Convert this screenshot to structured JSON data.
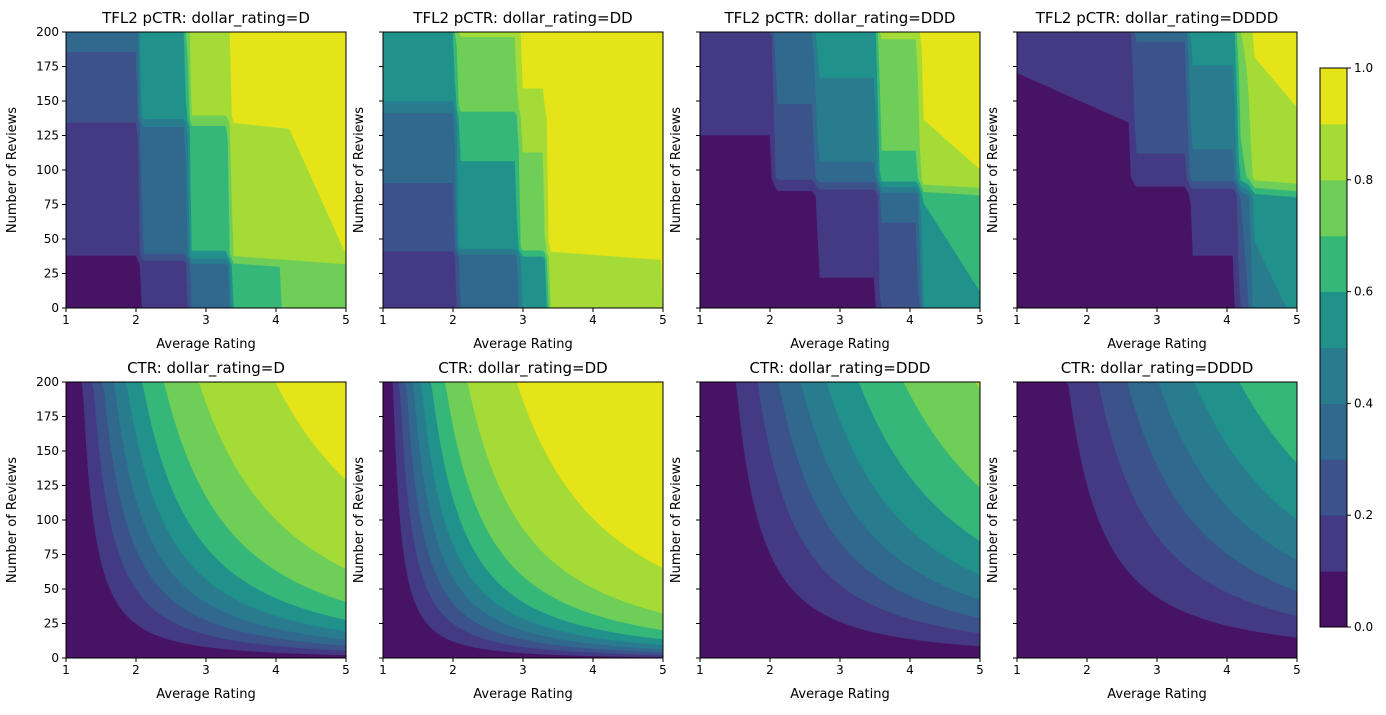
{
  "chart_data": [
    {
      "type": "contour",
      "title": "TFL2 pCTR: dollar_rating=D",
      "xlabel": "Average Rating",
      "ylabel": "Number of Reviews",
      "xlim": [
        1,
        5
      ],
      "ylim": [
        0,
        200
      ],
      "xticks": [
        1,
        2,
        3,
        4,
        5
      ],
      "yticks": [
        0,
        25,
        50,
        75,
        100,
        125,
        150,
        175,
        200
      ],
      "ytick_labels": true
    },
    {
      "type": "contour",
      "title": "TFL2 pCTR: dollar_rating=DD",
      "xlabel": "Average Rating",
      "ylabel": "Number of Reviews",
      "xlim": [
        1,
        5
      ],
      "ylim": [
        0,
        200
      ],
      "xticks": [
        1,
        2,
        3,
        4,
        5
      ],
      "yticks": [
        0,
        25,
        50,
        75,
        100,
        125,
        150,
        175,
        200
      ],
      "ytick_labels": false
    },
    {
      "type": "contour",
      "title": "TFL2 pCTR: dollar_rating=DDD",
      "xlabel": "Average Rating",
      "ylabel": "Number of Reviews",
      "xlim": [
        1,
        5
      ],
      "ylim": [
        0,
        200
      ],
      "xticks": [
        1,
        2,
        3,
        4,
        5
      ],
      "yticks": [
        0,
        25,
        50,
        75,
        100,
        125,
        150,
        175,
        200
      ],
      "ytick_labels": false
    },
    {
      "type": "contour",
      "title": "TFL2 pCTR: dollar_rating=DDDD",
      "xlabel": "Average Rating",
      "ylabel": "Number of Reviews",
      "xlim": [
        1,
        5
      ],
      "ylim": [
        0,
        200
      ],
      "xticks": [
        1,
        2,
        3,
        4,
        5
      ],
      "yticks": [
        0,
        25,
        50,
        75,
        100,
        125,
        150,
        175,
        200
      ],
      "ytick_labels": false
    },
    {
      "type": "contour",
      "title": "CTR: dollar_rating=D",
      "xlabel": "Average Rating",
      "ylabel": "Number of Reviews",
      "xlim": [
        1,
        5
      ],
      "ylim": [
        0,
        200
      ],
      "xticks": [
        1,
        2,
        3,
        4,
        5
      ],
      "yticks": [
        0,
        25,
        50,
        75,
        100,
        125,
        150,
        175,
        200
      ],
      "ytick_labels": true
    },
    {
      "type": "contour",
      "title": "CTR: dollar_rating=DD",
      "xlabel": "Average Rating",
      "ylabel": "Number of Reviews",
      "xlim": [
        1,
        5
      ],
      "ylim": [
        0,
        200
      ],
      "xticks": [
        1,
        2,
        3,
        4,
        5
      ],
      "yticks": [
        0,
        25,
        50,
        75,
        100,
        125,
        150,
        175,
        200
      ],
      "ytick_labels": false
    },
    {
      "type": "contour",
      "title": "CTR: dollar_rating=DDD",
      "xlabel": "Average Rating",
      "ylabel": "Number of Reviews",
      "xlim": [
        1,
        5
      ],
      "ylim": [
        0,
        200
      ],
      "xticks": [
        1,
        2,
        3,
        4,
        5
      ],
      "yticks": [
        0,
        25,
        50,
        75,
        100,
        125,
        150,
        175,
        200
      ],
      "ytick_labels": false
    },
    {
      "type": "contour",
      "title": "CTR: dollar_rating=DDDD",
      "xlabel": "Average Rating",
      "ylabel": "Number of Reviews",
      "xlim": [
        1,
        5
      ],
      "ylim": [
        0,
        200
      ],
      "xticks": [
        1,
        2,
        3,
        4,
        5
      ],
      "yticks": [
        0,
        25,
        50,
        75,
        100,
        125,
        150,
        175,
        200
      ],
      "ytick_labels": false
    },
    {
      "type": "colorbar",
      "ylim": [
        0,
        1
      ],
      "levels": [
        0,
        0.1,
        0.2,
        0.3,
        0.4,
        0.5,
        0.6,
        0.7,
        0.8,
        0.9,
        1
      ],
      "colors": [
        "#471365",
        "#443983",
        "#3b528b",
        "#31688e",
        "#287c8e",
        "#21918c",
        "#35b779",
        "#6ece58",
        "#a5db36",
        "#e5e419"
      ],
      "yticks": [
        {
          "value": 0,
          "label": "0.0"
        },
        0.2,
        0.4,
        0.6,
        0.8,
        {
          "value": 1,
          "label": "1.0"
        }
      ]
    }
  ]
}
